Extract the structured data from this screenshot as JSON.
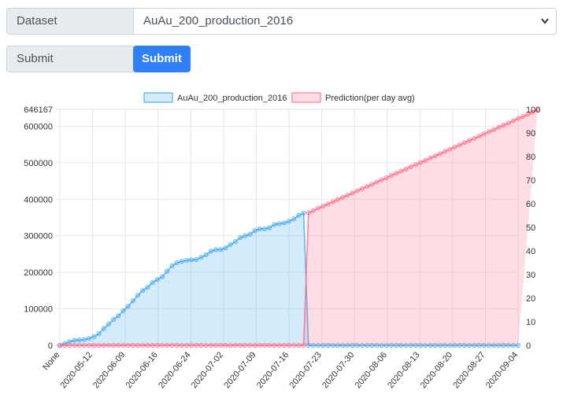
{
  "form": {
    "dataset_label": "Dataset",
    "dataset_value": "AuAu_200_production_2016",
    "submit_label": "Submit",
    "submit_button": "Submit"
  },
  "colors": {
    "accent": "#2f80f7",
    "series1": "#36a2eb",
    "series2": "#ff6384"
  },
  "chart_data": {
    "type": "line",
    "x_tick_labels": [
      "None",
      "2020-05-12",
      "2020-06-09",
      "2020-06-16",
      "2020-06-24",
      "2020-07-02",
      "2020-07-09",
      "2020-07-16",
      "2020-07-23",
      "2020-07-30",
      "2020-08-06",
      "2020-08-13",
      "2020-08-20",
      "2020-08-27",
      "2020-09-04"
    ],
    "y_left": {
      "ticks": [
        0,
        100000,
        200000,
        300000,
        400000,
        500000,
        600000,
        646167
      ],
      "ylim": [
        0,
        646167
      ]
    },
    "y_right": {
      "ticks": [
        0,
        10,
        20,
        30,
        40,
        50,
        60,
        70,
        80,
        90,
        100
      ],
      "ylim": [
        0,
        100
      ]
    },
    "legend_position": "top",
    "grid": true,
    "series": [
      {
        "name": "AuAu_200_production_2016",
        "axis": "left",
        "fill": true,
        "values": [
          0,
          5000,
          10000,
          14000,
          15000,
          16000,
          19000,
          24000,
          32000,
          46000,
          58000,
          71000,
          81000,
          95000,
          107000,
          122000,
          137000,
          150000,
          159000,
          172000,
          180000,
          188000,
          203000,
          218000,
          226000,
          230000,
          233000,
          234000,
          235000,
          241000,
          248000,
          258000,
          262000,
          262000,
          267000,
          276000,
          284000,
          295000,
          300000,
          304000,
          314000,
          319000,
          319000,
          322000,
          331000,
          333000,
          335000,
          340000,
          346000,
          356000,
          362000,
          0,
          0,
          0,
          0,
          0,
          0,
          0,
          0,
          0,
          0,
          0,
          0,
          0,
          0,
          0,
          0,
          0,
          0,
          0,
          0,
          0,
          0,
          0,
          0,
          0,
          0,
          0,
          0,
          0,
          0,
          0,
          0,
          0,
          0,
          0,
          0,
          0,
          0,
          0,
          0,
          0,
          0,
          0,
          0
        ]
      },
      {
        "name": "Prediction(per day avg)",
        "axis": "right",
        "fill": true,
        "values": [
          0,
          0,
          0,
          0,
          0,
          0,
          0,
          0,
          0,
          0,
          0,
          0,
          0,
          0,
          0,
          0,
          0,
          0,
          0,
          0,
          0,
          0,
          0,
          0,
          0,
          0,
          0,
          0,
          0,
          0,
          0,
          0,
          0,
          0,
          0,
          0,
          0,
          0,
          0,
          0,
          0,
          0,
          0,
          0,
          0,
          0,
          0,
          0,
          0,
          0,
          0,
          56.2,
          57.1,
          58.1,
          59.0,
          59.9,
          60.8,
          61.8,
          62.7,
          63.6,
          64.5,
          65.5,
          66.4,
          67.3,
          68.2,
          69.2,
          70.1,
          71.0,
          72.0,
          72.9,
          73.8,
          74.7,
          75.7,
          76.6,
          77.5,
          78.4,
          79.4,
          80.3,
          81.2,
          82.2,
          83.1,
          84.0,
          84.9,
          85.9,
          86.8,
          87.7,
          88.6,
          89.6,
          90.5,
          91.4,
          92.4,
          93.3,
          94.2,
          95.1,
          96.1,
          97.0,
          97.9,
          98.8,
          99.8
        ]
      }
    ]
  }
}
